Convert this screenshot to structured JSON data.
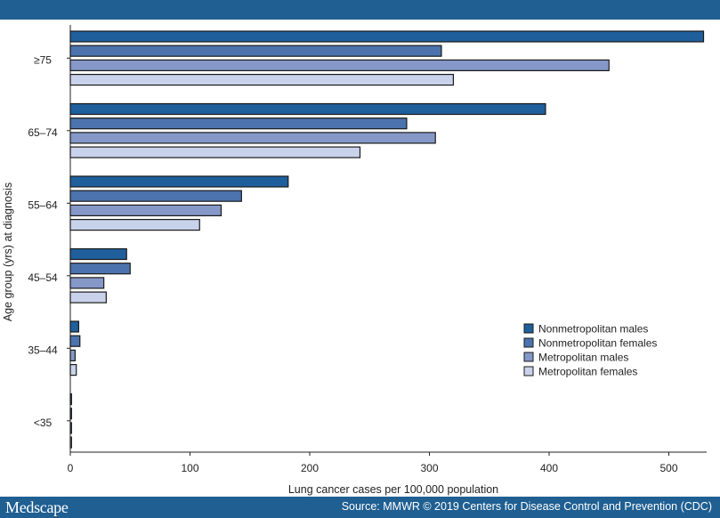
{
  "chart_data": {
    "type": "bar",
    "orientation": "horizontal",
    "categories": [
      "≥75",
      "65–74",
      "55–64",
      "45–54",
      "35–44",
      "<35"
    ],
    "series": [
      {
        "name": "Nonmetropolitan males",
        "color": "#1f5f9c",
        "values": [
          529,
          397,
          182,
          47,
          7,
          1
        ]
      },
      {
        "name": "Nonmetropolitan females",
        "color": "#4c73ad",
        "values": [
          310,
          281,
          143,
          50,
          8,
          1
        ]
      },
      {
        "name": "Metropolitan males",
        "color": "#8598c8",
        "values": [
          450,
          305,
          126,
          28,
          4,
          1
        ]
      },
      {
        "name": "Metropolitan females",
        "color": "#c8d2ea",
        "values": [
          320,
          242,
          108,
          30,
          5,
          1
        ]
      }
    ],
    "xlabel": "Lung cancer  cases per 100,000 population",
    "ylabel": "Age group (yrs) at diagnosis",
    "xlim": [
      0,
      540
    ],
    "xticks": [
      0,
      100,
      200,
      300,
      400,
      500
    ],
    "grid": false,
    "legend_position": "right"
  },
  "footer": {
    "logo": "Medscape",
    "source": "Source: MMWR © 2019 Centers for Disease Control and Prevention (CDC)"
  }
}
